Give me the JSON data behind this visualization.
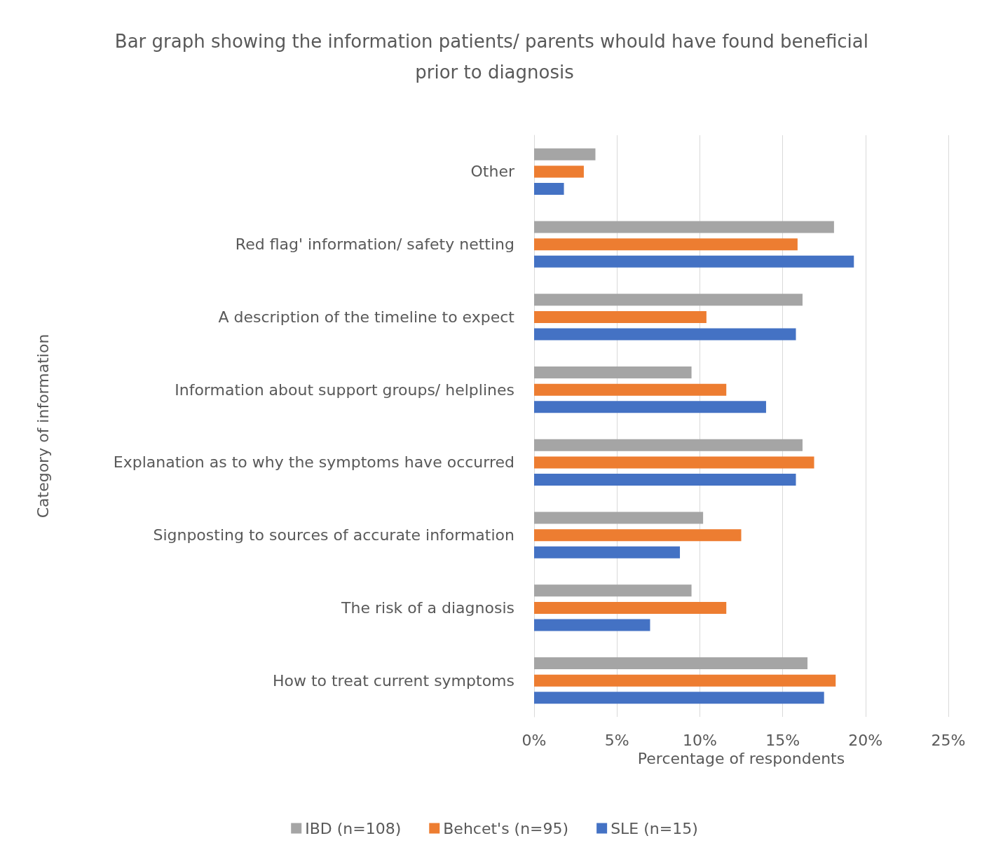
{
  "chart_data": {
    "type": "bar",
    "orientation": "horizontal",
    "title": "Bar graph showing the information patients/ parents whould have found beneficial prior to diagnosis",
    "xlabel": "Percentage of respondents",
    "ylabel": "Category of information",
    "categories": [
      "Other",
      "Red flag' information/ safety netting",
      "A description of the timeline to expect",
      "Information about support groups/ helplines",
      "Explanation as to why the symptoms have occurred",
      "Signposting to sources of accurate information",
      "The risk of a diagnosis",
      "How to treat current symptoms"
    ],
    "series": [
      {
        "name": "IBD (n=108)",
        "color": "#a5a5a5",
        "values": [
          3.7,
          18.1,
          16.2,
          9.5,
          16.2,
          10.2,
          9.5,
          16.5
        ]
      },
      {
        "name": "Behcet's (n=95)",
        "color": "#ed7d31",
        "values": [
          3.0,
          15.9,
          10.4,
          11.6,
          16.9,
          12.5,
          11.6,
          18.2
        ]
      },
      {
        "name": "SLE (n=15)",
        "color": "#4472c4",
        "values": [
          1.8,
          19.3,
          15.8,
          14.0,
          15.8,
          8.8,
          7.0,
          17.5
        ]
      }
    ],
    "xlim": [
      0,
      25
    ],
    "xticks": [
      {
        "value": 0,
        "label": "0%"
      },
      {
        "value": 5,
        "label": "5%"
      },
      {
        "value": 10,
        "label": "10%"
      },
      {
        "value": 15,
        "label": "15%"
      },
      {
        "value": 20,
        "label": "20%"
      },
      {
        "value": 25,
        "label": "25%"
      }
    ],
    "grid": "x",
    "legend": "bottom"
  }
}
